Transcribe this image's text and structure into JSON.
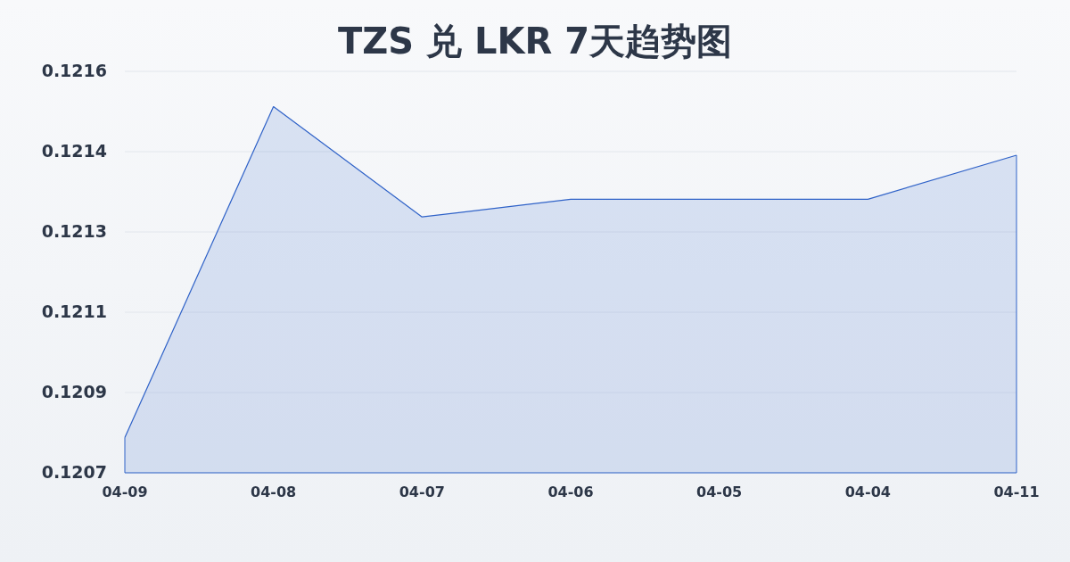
{
  "chart_data": {
    "type": "area",
    "title": "TZS 兑 LKR 7天趋势图",
    "categories": [
      "04-09",
      "04-08",
      "04-07",
      "04-06",
      "04-05",
      "04-04",
      "04-11"
    ],
    "series": [
      {
        "color": "#2f62c8",
        "values": [
          0.1208,
          0.12155,
          0.1213,
          0.12134,
          0.12134,
          0.12134,
          0.12144
        ]
      }
    ],
    "ylim": [
      0.12072,
      0.12163
    ],
    "yticks": [
      {
        "value": 0.12072,
        "label": "0.1207"
      },
      {
        "value": 0.120902,
        "label": "0.1209"
      },
      {
        "value": 0.121084,
        "label": "0.1211"
      },
      {
        "value": 0.121266,
        "label": "0.1213"
      },
      {
        "value": 0.121448,
        "label": "0.1214"
      },
      {
        "value": 0.12163,
        "label": "0.1216"
      }
    ],
    "grid": "y"
  }
}
